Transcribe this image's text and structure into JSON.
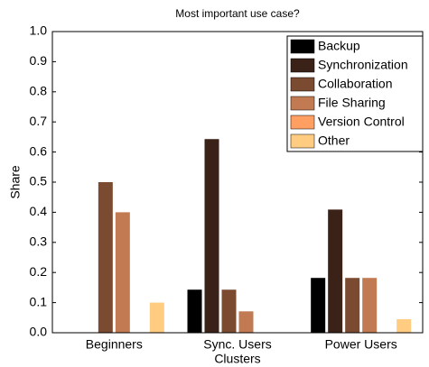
{
  "chart_data": {
    "type": "bar",
    "title": "Most important use case?",
    "xlabel": "Clusters",
    "ylabel": "Share",
    "categories": [
      "Beginners",
      "Sync. Users",
      "Power Users"
    ],
    "series": [
      {
        "name": "Backup",
        "color": "#000000",
        "values": [
          0,
          0.143,
          0.182
        ]
      },
      {
        "name": "Synchronization",
        "color": "#3b2218",
        "values": [
          0,
          0.643,
          0.409
        ]
      },
      {
        "name": "Collaboration",
        "color": "#7b4b31",
        "values": [
          0.5,
          0.143,
          0.182
        ]
      },
      {
        "name": "File Sharing",
        "color": "#c17a52",
        "values": [
          0.4,
          0.071,
          0.182
        ]
      },
      {
        "name": "Version Control",
        "color": "#ff9f62",
        "values": [
          0,
          0,
          0
        ]
      },
      {
        "name": "Other",
        "color": "#ffcc82",
        "values": [
          0.1,
          0,
          0.045
        ]
      }
    ],
    "ylim": [
      0,
      1
    ],
    "yticks": [
      {
        "value": 0,
        "label": "0.0"
      },
      0.1,
      0.2,
      0.3,
      0.4,
      0.5,
      0.6,
      0.7,
      0.8,
      0.9,
      {
        "value": 1,
        "label": "1.0"
      }
    ],
    "legend": "upper right",
    "grid": false
  }
}
